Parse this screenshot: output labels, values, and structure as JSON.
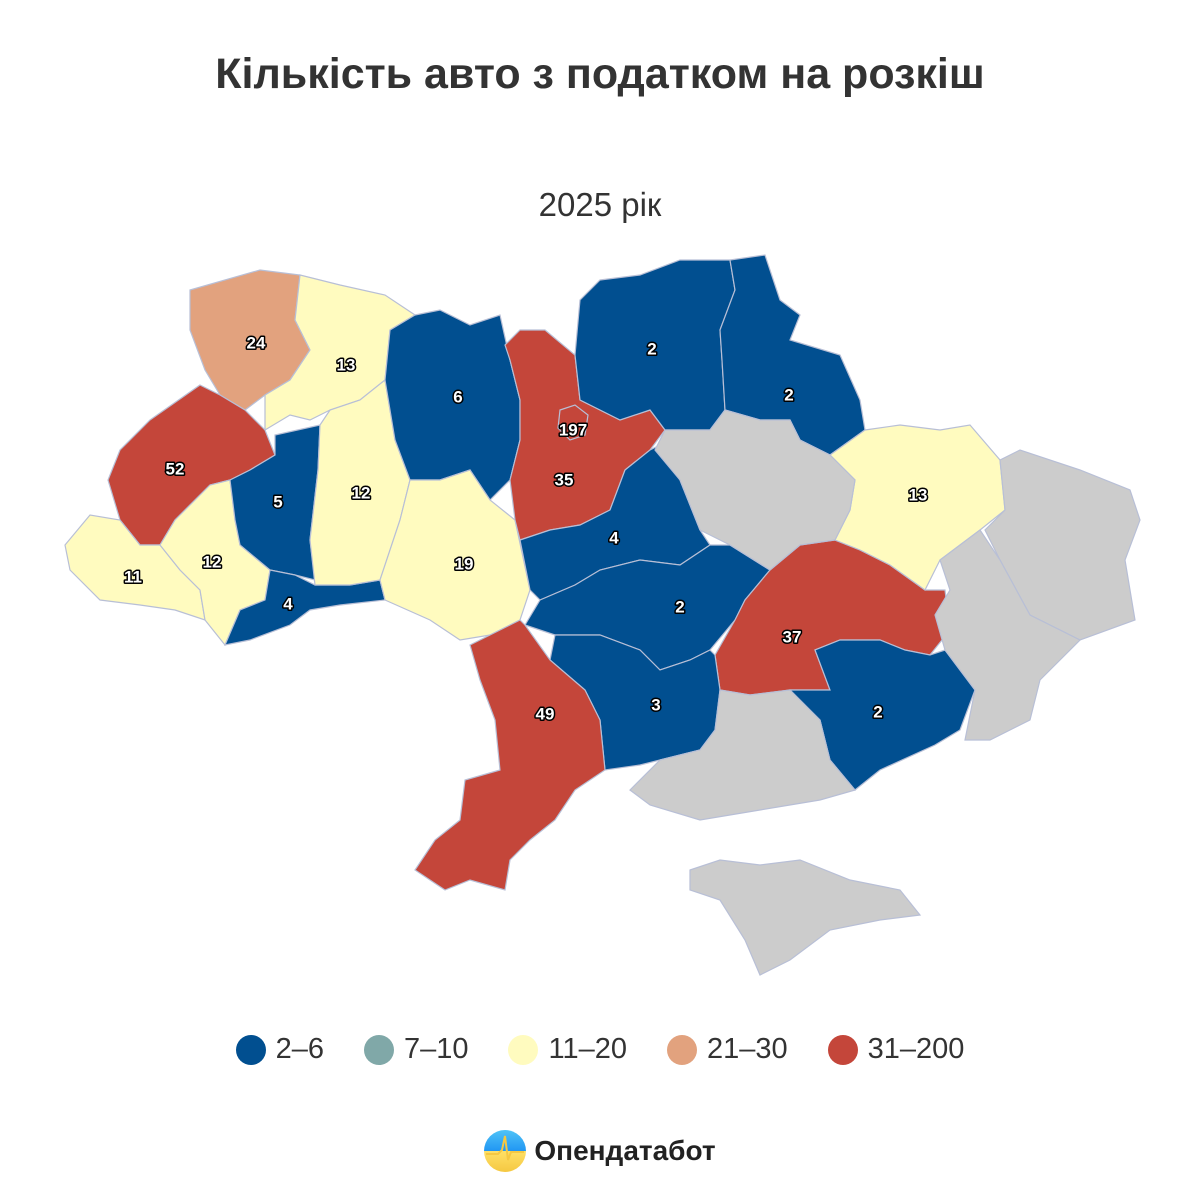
{
  "header": {
    "title": "Кількість авто з податком на розкіш",
    "subtitle": "2025 рік"
  },
  "chart_data": {
    "type": "map",
    "title": "Кількість авто з податком на розкіш",
    "subtitle": "2025 рік",
    "legend_position": "bottom",
    "no_data_color": "#cccccc",
    "legend": [
      {
        "label": "2–6",
        "color": "#014f90"
      },
      {
        "label": "7–10",
        "color": "#80a8a8"
      },
      {
        "label": "11–20",
        "color": "#fffbbf"
      },
      {
        "label": "21–30",
        "color": "#e2a27e"
      },
      {
        "label": "31–200",
        "color": "#c4463a"
      }
    ],
    "regions": [
      {
        "value": 24,
        "class": 3
      },
      {
        "value": 13,
        "class": 2
      },
      {
        "value": 52,
        "class": 4
      },
      {
        "value": 11,
        "class": 2
      },
      {
        "value": 12,
        "class": 2
      },
      {
        "value": 5,
        "class": 0
      },
      {
        "value": 4,
        "class": 0
      },
      {
        "value": 12,
        "class": 2
      },
      {
        "value": 6,
        "class": 0
      },
      {
        "value": 19,
        "class": 2
      },
      {
        "value": 35,
        "class": 4
      },
      {
        "value": 197,
        "class": 4
      },
      {
        "value": 2,
        "class": 0
      },
      {
        "value": 2,
        "class": 0
      },
      {
        "value": 4,
        "class": 0
      },
      {
        "value": 2,
        "class": 0
      },
      {
        "value": 37,
        "class": 4
      },
      {
        "value": 2,
        "class": 0
      },
      {
        "value": 3,
        "class": 0
      },
      {
        "value": 49,
        "class": 4
      },
      {
        "value": 13,
        "class": 2
      },
      {
        "value": null
      },
      {
        "value": null
      },
      {
        "value": null
      },
      {
        "value": null
      },
      {
        "value": null
      }
    ]
  },
  "footer": {
    "brand": "Опендатабот"
  }
}
